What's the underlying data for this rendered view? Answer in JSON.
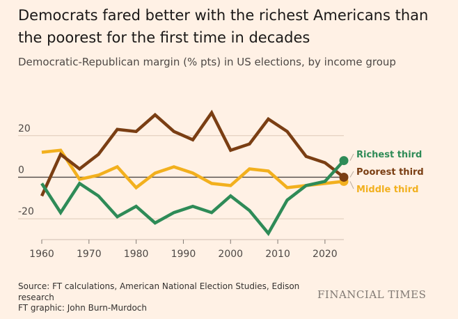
{
  "header": {
    "title": "Democrats fared better with the richest Americans than the poorest for the first time in decades",
    "subtitle": "Democratic-Republican margin (% pts) in US elections, by income group"
  },
  "footer": {
    "source": "Source: FT calculations, American National Election Studies, Edison research",
    "credit": "FT graphic: John Burn-Murdoch",
    "brand": "FINANCIAL TIMES"
  },
  "chart_data": {
    "type": "line",
    "title": "",
    "xlabel": "",
    "ylabel": "",
    "xlim": [
      1960,
      2024
    ],
    "ylim": [
      -30,
      35
    ],
    "x_ticks": [
      1960,
      1970,
      1980,
      1990,
      2000,
      2010,
      2020
    ],
    "y_ticks": [
      -20,
      0,
      20
    ],
    "grid": "horizontal",
    "legend": "direct-labels-right",
    "x": [
      1960,
      1964,
      1968,
      1972,
      1976,
      1980,
      1984,
      1988,
      1992,
      1996,
      2000,
      2004,
      2008,
      2012,
      2016,
      2020,
      2024
    ],
    "series": [
      {
        "name": "Richest third",
        "color": "#2e8b57",
        "values": [
          -3,
          -17,
          -3,
          -9,
          -19,
          -14,
          -22,
          -17,
          -14,
          -17,
          -9,
          -16,
          -27,
          -11,
          -4,
          -2,
          8
        ]
      },
      {
        "name": "Poorest third",
        "color": "#7a3e13",
        "values": [
          -9,
          11,
          4,
          11,
          23,
          22,
          30,
          22,
          18,
          31,
          13,
          16,
          28,
          22,
          10,
          7,
          0
        ]
      },
      {
        "name": "Middle third",
        "color": "#f2b01e",
        "values": [
          12,
          13,
          -1,
          1,
          5,
          -5,
          2,
          5,
          2,
          -3,
          -4,
          4,
          3,
          -5,
          -4,
          -3,
          -2
        ]
      }
    ]
  }
}
